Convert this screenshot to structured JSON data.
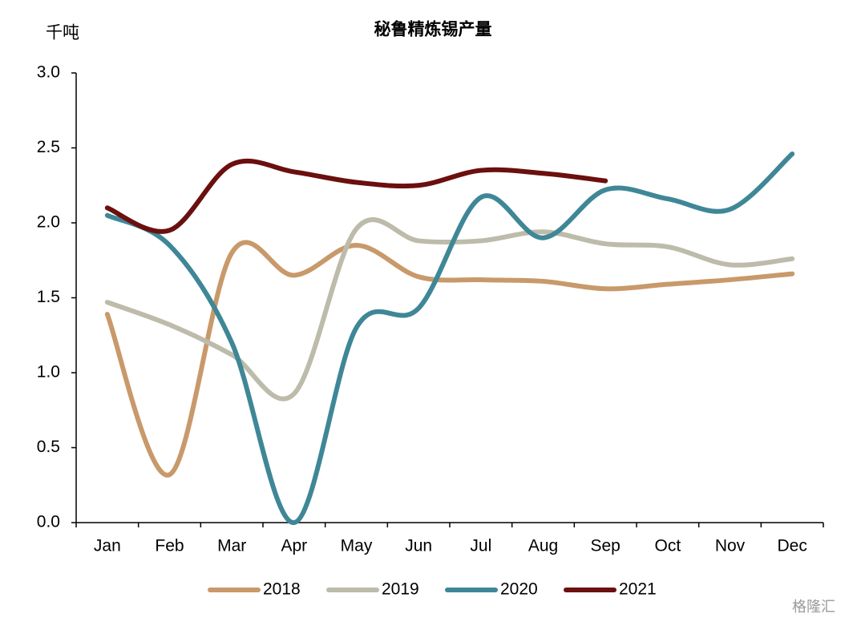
{
  "chart_data": {
    "type": "line",
    "title": "秘鲁精炼锡产量",
    "y_label": "千吨",
    "categories": [
      "Jan",
      "Feb",
      "Mar",
      "Apr",
      "May",
      "Jun",
      "Jul",
      "Aug",
      "Sep",
      "Oct",
      "Nov",
      "Dec"
    ],
    "series": [
      {
        "name": "2018",
        "color": "#c8996a",
        "values": [
          1.39,
          0.32,
          1.8,
          1.65,
          1.85,
          1.64,
          1.62,
          1.61,
          1.56,
          1.59,
          1.62,
          1.66
        ]
      },
      {
        "name": "2019",
        "color": "#bdbbaa",
        "values": [
          1.47,
          1.32,
          1.12,
          0.86,
          1.96,
          1.88,
          1.88,
          1.94,
          1.86,
          1.84,
          1.72,
          1.76
        ]
      },
      {
        "name": "2020",
        "color": "#3f8797",
        "values": [
          2.05,
          1.85,
          1.2,
          0.0,
          1.3,
          1.43,
          2.17,
          1.9,
          2.22,
          2.16,
          2.09,
          2.46
        ]
      },
      {
        "name": "2021",
        "color": "#6b0f0f",
        "values": [
          2.1,
          1.95,
          2.39,
          2.34,
          2.27,
          2.25,
          2.35,
          2.33,
          2.28,
          null,
          null,
          null
        ]
      }
    ],
    "ylim": [
      0,
      3
    ],
    "yticks": [
      {
        "value": 0,
        "label": "0.0"
      },
      {
        "value": 0.5,
        "label": "0.5"
      },
      {
        "value": 1,
        "label": "1.0"
      },
      {
        "value": 1.5,
        "label": "1.5"
      },
      {
        "value": 2,
        "label": "2.0"
      },
      {
        "value": 2.5,
        "label": "2.5"
      },
      {
        "value": 3,
        "label": "3.0"
      }
    ],
    "legend": "bottom",
    "watermark": "格隆汇"
  }
}
